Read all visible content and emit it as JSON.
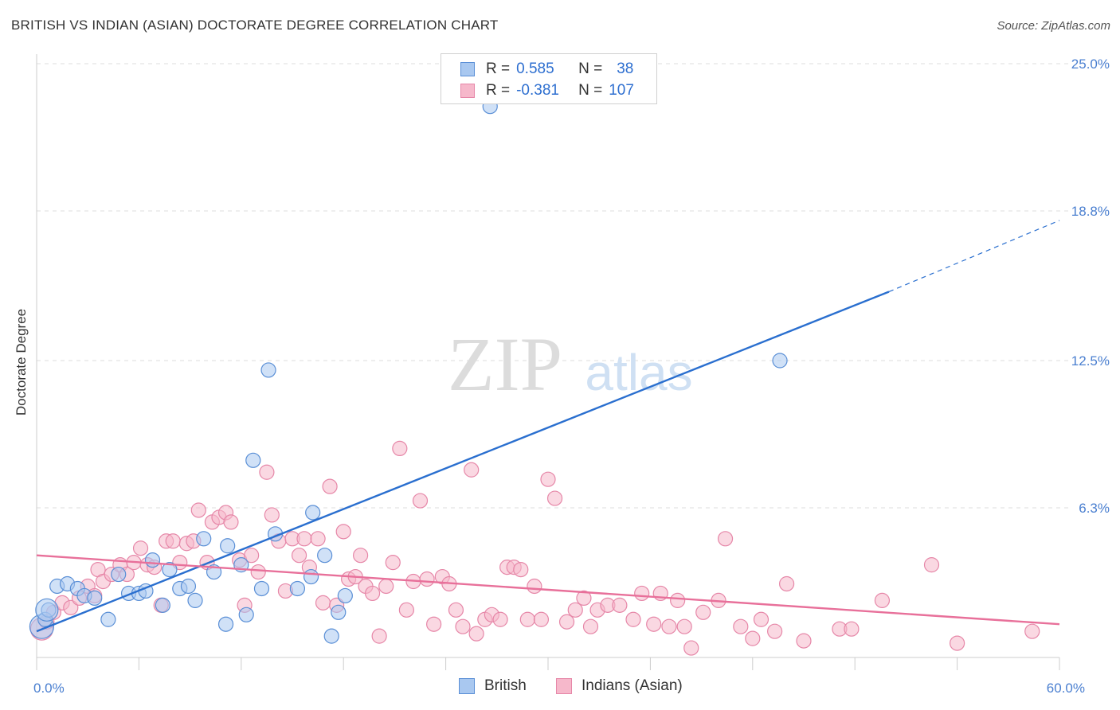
{
  "header": {
    "title": "BRITISH VS INDIAN (ASIAN) DOCTORATE DEGREE CORRELATION CHART",
    "source": "Source: ZipAtlas.com"
  },
  "watermark": {
    "zip": "ZIP",
    "atlas": "atlas"
  },
  "legend": {
    "british": {
      "r_label": "R =",
      "r_value": "0.585",
      "n_label": "N =",
      "n_value": "38"
    },
    "indians": {
      "r_label": "R =",
      "r_value": "-0.381",
      "n_label": "N =",
      "n_value": "107"
    }
  },
  "bottom_legend": {
    "british": "British",
    "indians": "Indians (Asian)"
  },
  "colors": {
    "british_fill": "#a9c8f0",
    "british_stroke": "#5a8fd6",
    "british_line": "#2a6fcf",
    "indians_fill": "#f6b8cb",
    "indians_stroke": "#e687a8",
    "indians_line": "#e8709a",
    "tick_label": "#4a7fd0",
    "grid": "#dddddd"
  },
  "chart_data": {
    "type": "scatter",
    "title": "BRITISH VS INDIAN (ASIAN) DOCTORATE DEGREE CORRELATION CHART",
    "xlabel": "",
    "ylabel": "Doctorate Degree",
    "xlim": [
      0,
      60
    ],
    "ylim": [
      0,
      25
    ],
    "x_tick_labels": [
      {
        "value": 0,
        "label": "0.0%"
      },
      {
        "value": 60,
        "label": "60.0%"
      }
    ],
    "y_tick_labels": [
      {
        "value": 6.3,
        "label": "6.3%"
      },
      {
        "value": 12.5,
        "label": "12.5%"
      },
      {
        "value": 18.8,
        "label": "18.8%"
      },
      {
        "value": 25.0,
        "label": "25.0%"
      }
    ],
    "series": [
      {
        "name": "British",
        "points": [
          [
            0.3,
            1.3
          ],
          [
            0.5,
            1.6
          ],
          [
            0.7,
            2.0
          ],
          [
            1.2,
            3.0
          ],
          [
            1.8,
            3.1
          ],
          [
            2.4,
            2.9
          ],
          [
            2.8,
            2.6
          ],
          [
            3.4,
            2.5
          ],
          [
            4.2,
            1.6
          ],
          [
            4.8,
            3.5
          ],
          [
            5.4,
            2.7
          ],
          [
            6.0,
            2.7
          ],
          [
            6.4,
            2.8
          ],
          [
            6.8,
            4.1
          ],
          [
            7.4,
            2.2
          ],
          [
            7.8,
            3.7
          ],
          [
            8.4,
            2.9
          ],
          [
            8.9,
            3.0
          ],
          [
            9.3,
            2.4
          ],
          [
            9.8,
            5.0
          ],
          [
            10.4,
            3.6
          ],
          [
            11.1,
            1.4
          ],
          [
            11.2,
            4.7
          ],
          [
            12.0,
            3.9
          ],
          [
            12.3,
            1.8
          ],
          [
            12.7,
            8.3
          ],
          [
            13.2,
            2.9
          ],
          [
            13.6,
            12.1
          ],
          [
            14.0,
            5.2
          ],
          [
            15.3,
            2.9
          ],
          [
            16.1,
            3.4
          ],
          [
            16.2,
            6.1
          ],
          [
            16.9,
            4.3
          ],
          [
            17.3,
            0.9
          ],
          [
            17.7,
            1.9
          ],
          [
            18.1,
            2.6
          ],
          [
            26.6,
            23.2
          ],
          [
            43.6,
            12.5
          ]
        ]
      },
      {
        "name": "Indians (Asian)",
        "points": [
          [
            0.3,
            1.2
          ],
          [
            0.6,
            1.5
          ],
          [
            1.0,
            1.9
          ],
          [
            1.5,
            2.3
          ],
          [
            2.0,
            2.1
          ],
          [
            2.5,
            2.5
          ],
          [
            3.0,
            3.0
          ],
          [
            3.4,
            2.6
          ],
          [
            3.6,
            3.7
          ],
          [
            3.9,
            3.2
          ],
          [
            4.4,
            3.5
          ],
          [
            4.9,
            3.9
          ],
          [
            5.3,
            3.5
          ],
          [
            5.7,
            4.0
          ],
          [
            6.1,
            4.6
          ],
          [
            6.5,
            3.9
          ],
          [
            6.9,
            3.8
          ],
          [
            7.3,
            2.2
          ],
          [
            7.6,
            4.9
          ],
          [
            8.0,
            4.9
          ],
          [
            8.4,
            4.0
          ],
          [
            8.8,
            4.8
          ],
          [
            9.2,
            4.9
          ],
          [
            9.5,
            6.2
          ],
          [
            10.0,
            4.0
          ],
          [
            10.3,
            5.7
          ],
          [
            10.7,
            5.9
          ],
          [
            11.1,
            6.1
          ],
          [
            11.4,
            5.7
          ],
          [
            11.9,
            4.1
          ],
          [
            12.2,
            2.2
          ],
          [
            12.6,
            4.3
          ],
          [
            13.0,
            3.6
          ],
          [
            13.5,
            7.8
          ],
          [
            13.8,
            6.0
          ],
          [
            14.2,
            4.9
          ],
          [
            14.6,
            2.8
          ],
          [
            15.0,
            5.0
          ],
          [
            15.4,
            4.3
          ],
          [
            15.7,
            5.0
          ],
          [
            16.0,
            3.8
          ],
          [
            16.5,
            5.0
          ],
          [
            16.8,
            2.3
          ],
          [
            17.2,
            7.2
          ],
          [
            17.6,
            2.2
          ],
          [
            18.0,
            5.3
          ],
          [
            18.3,
            3.3
          ],
          [
            18.7,
            3.4
          ],
          [
            19.0,
            4.3
          ],
          [
            19.3,
            3.0
          ],
          [
            19.7,
            2.7
          ],
          [
            20.1,
            0.9
          ],
          [
            20.5,
            3.0
          ],
          [
            20.9,
            4.0
          ],
          [
            21.3,
            8.8
          ],
          [
            21.7,
            2.0
          ],
          [
            22.1,
            3.2
          ],
          [
            22.5,
            6.6
          ],
          [
            22.9,
            3.3
          ],
          [
            23.3,
            1.4
          ],
          [
            23.8,
            3.4
          ],
          [
            24.2,
            3.1
          ],
          [
            24.6,
            2.0
          ],
          [
            25.0,
            1.3
          ],
          [
            25.5,
            7.9
          ],
          [
            25.8,
            1.0
          ],
          [
            26.3,
            1.6
          ],
          [
            26.7,
            1.8
          ],
          [
            27.2,
            1.6
          ],
          [
            27.6,
            3.8
          ],
          [
            28.0,
            3.8
          ],
          [
            28.4,
            3.7
          ],
          [
            28.8,
            1.6
          ],
          [
            29.2,
            3.0
          ],
          [
            29.6,
            1.6
          ],
          [
            30.0,
            7.5
          ],
          [
            30.4,
            6.7
          ],
          [
            31.1,
            1.5
          ],
          [
            31.6,
            2.0
          ],
          [
            32.1,
            2.5
          ],
          [
            32.5,
            1.3
          ],
          [
            32.9,
            2.0
          ],
          [
            33.5,
            2.2
          ],
          [
            34.2,
            2.2
          ],
          [
            35.0,
            1.6
          ],
          [
            35.5,
            2.7
          ],
          [
            36.2,
            1.4
          ],
          [
            36.6,
            2.7
          ],
          [
            37.1,
            1.3
          ],
          [
            37.6,
            2.4
          ],
          [
            38.0,
            1.3
          ],
          [
            38.4,
            0.4
          ],
          [
            39.1,
            1.9
          ],
          [
            40.0,
            2.4
          ],
          [
            40.4,
            5.0
          ],
          [
            41.3,
            1.3
          ],
          [
            42.0,
            0.8
          ],
          [
            42.5,
            1.6
          ],
          [
            43.3,
            1.1
          ],
          [
            44.0,
            3.1
          ],
          [
            45.0,
            0.7
          ],
          [
            47.1,
            1.2
          ],
          [
            47.8,
            1.2
          ],
          [
            49.6,
            2.4
          ],
          [
            52.5,
            3.9
          ],
          [
            54.0,
            0.6
          ],
          [
            58.4,
            1.1
          ]
        ]
      }
    ],
    "trend_lines": [
      {
        "series": "British",
        "x_start": 0,
        "y_start": 1.1,
        "x_solid_end": 50,
        "y_solid_end": 15.4,
        "x_end": 60,
        "y_end": 18.4,
        "extension": "dashed"
      },
      {
        "series": "Indians (Asian)",
        "x_start": 0,
        "y_start": 4.3,
        "x_end": 60,
        "y_end": 1.4
      }
    ],
    "grid": true,
    "legend_position": "top-center"
  }
}
